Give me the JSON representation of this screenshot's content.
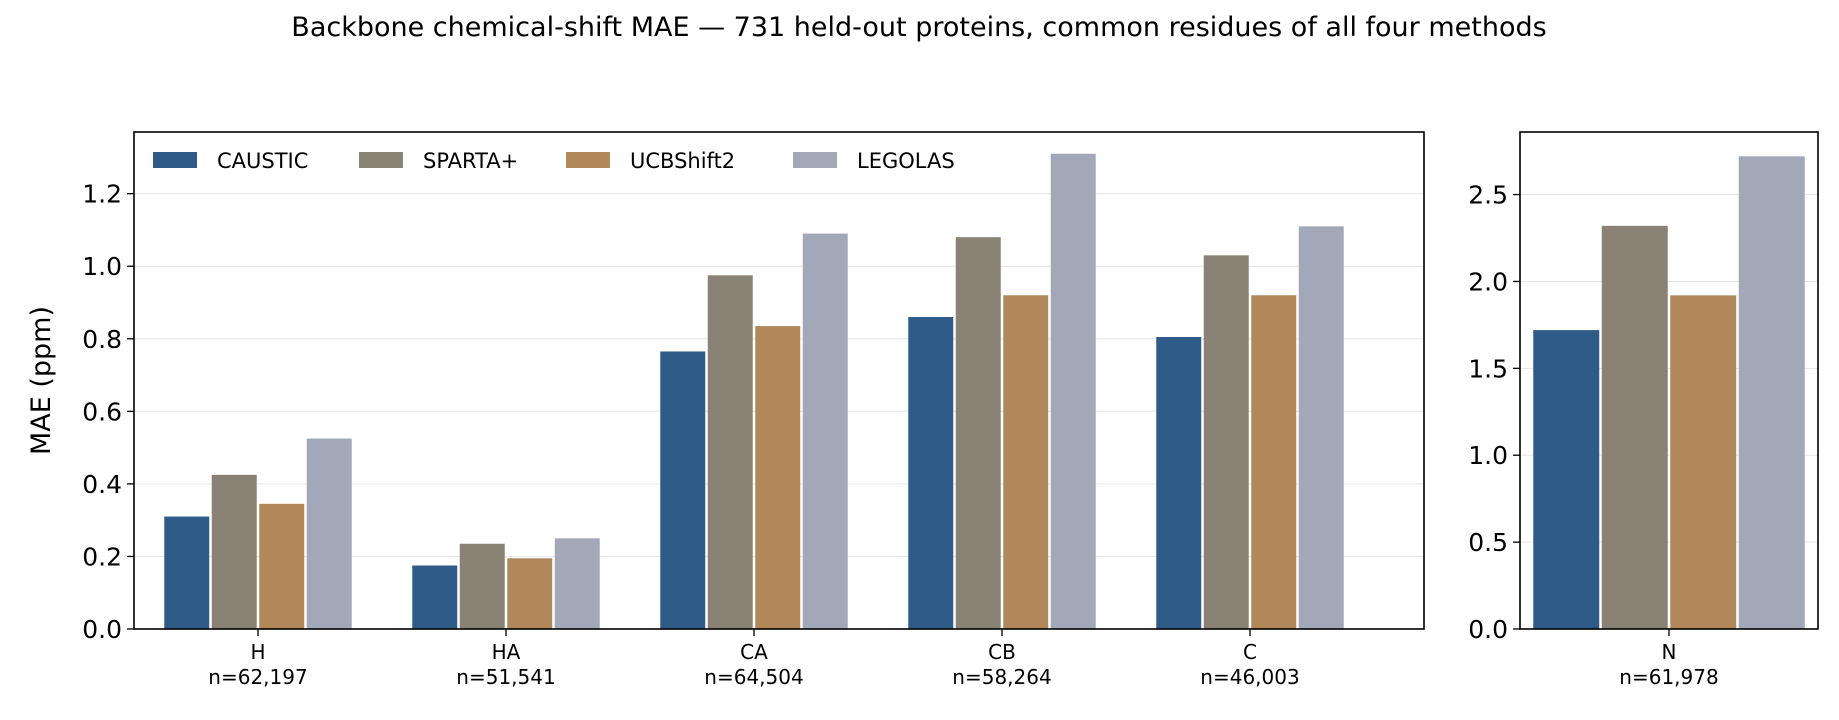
{
  "figure_title": "Backbone chemical-shift MAE — 731 held-out proteins, common residues of all four methods",
  "colors": {
    "CAUSTIC": "#2e5b88",
    "SPARTA+": "#8a8275",
    "UCBShift2": "#b08859",
    "LEGOLAS": "#a2a8b8"
  },
  "chart_data": [
    {
      "type": "bar",
      "ylabel": "MAE (ppm)",
      "ylim": [
        0,
        1.37
      ],
      "yticks": [
        "0.0",
        "0.2",
        "0.4",
        "0.6",
        "0.8",
        "1.0",
        "1.2"
      ],
      "grid": "horizontal",
      "legend_placement": "top-left",
      "legend": [
        "CAUSTIC",
        "SPARTA+",
        "UCBShift2",
        "LEGOLAS"
      ],
      "categories": [
        "H",
        "HA",
        "CA",
        "CB",
        "C"
      ],
      "sample_sizes": [
        "n=62,197",
        "n=51,541",
        "n=64,504",
        "n=58,264",
        "n=46,003"
      ],
      "series": [
        {
          "name": "CAUSTIC",
          "values": [
            0.31,
            0.175,
            0.765,
            0.86,
            0.805
          ]
        },
        {
          "name": "SPARTA+",
          "values": [
            0.425,
            0.235,
            0.975,
            1.08,
            1.03
          ]
        },
        {
          "name": "UCBShift2",
          "values": [
            0.345,
            0.195,
            0.835,
            0.92,
            0.92
          ]
        },
        {
          "name": "LEGOLAS",
          "values": [
            0.525,
            0.25,
            1.09,
            1.31,
            1.11
          ]
        }
      ]
    },
    {
      "type": "bar",
      "ylim": [
        0,
        2.86
      ],
      "yticks": [
        "0.0",
        "0.5",
        "1.0",
        "1.5",
        "2.0",
        "2.5"
      ],
      "grid": "horizontal",
      "categories": [
        "N"
      ],
      "sample_sizes": [
        "n=61,978"
      ],
      "series": [
        {
          "name": "CAUSTIC",
          "values": [
            1.72
          ]
        },
        {
          "name": "SPARTA+",
          "values": [
            2.32
          ]
        },
        {
          "name": "UCBShift2",
          "values": [
            1.92
          ]
        },
        {
          "name": "LEGOLAS",
          "values": [
            2.72
          ]
        }
      ]
    }
  ]
}
